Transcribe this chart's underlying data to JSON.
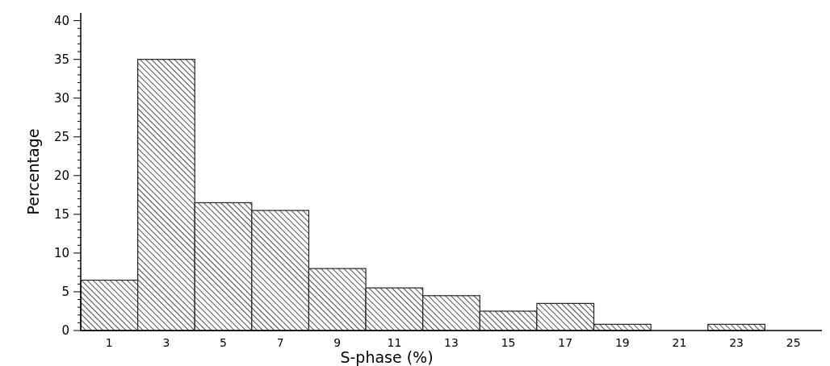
{
  "chart_data": {
    "type": "histogram",
    "xlabel": "S-phase (%)",
    "ylabel": "Percentage",
    "bins": [
      0,
      2,
      4,
      6,
      8,
      10,
      12,
      14,
      16,
      18,
      20,
      22,
      24,
      26
    ],
    "values": [
      6.5,
      35,
      16.5,
      15.5,
      8,
      5.5,
      4.5,
      2.5,
      3.5,
      0.8,
      0,
      0.8,
      0
    ],
    "color": "#222222",
    "xlim": [
      0,
      26
    ],
    "xticks": [
      1,
      3,
      5,
      7,
      9,
      11,
      13,
      15,
      17,
      19,
      21,
      23,
      25
    ],
    "ylim": [
      0,
      41
    ],
    "yticks": [
      0,
      {
        "value": 1,
        "label": null
      },
      {
        "value": 2,
        "label": null
      },
      {
        "value": 3,
        "label": null
      },
      {
        "value": 4,
        "label": null
      },
      5,
      {
        "value": 6,
        "label": null
      },
      {
        "value": 7,
        "label": null
      },
      {
        "value": 8,
        "label": null
      },
      {
        "value": 9,
        "label": null
      },
      10,
      {
        "value": 11,
        "label": null
      },
      {
        "value": 12,
        "label": null
      },
      {
        "value": 13,
        "label": null
      },
      {
        "value": 14,
        "label": null
      },
      15,
      {
        "value": 16,
        "label": null
      },
      {
        "value": 17,
        "label": null
      },
      {
        "value": 18,
        "label": null
      },
      {
        "value": 19,
        "label": null
      },
      20,
      {
        "value": 21,
        "label": null
      },
      {
        "value": 22,
        "label": null
      },
      {
        "value": 23,
        "label": null
      },
      {
        "value": 24,
        "label": null
      },
      25,
      {
        "value": 26,
        "label": null
      },
      {
        "value": 27,
        "label": null
      },
      {
        "value": 28,
        "label": null
      },
      {
        "value": 29,
        "label": null
      },
      30,
      {
        "value": 31,
        "label": null
      },
      {
        "value": 32,
        "label": null
      },
      {
        "value": 33,
        "label": null
      },
      {
        "value": 34,
        "label": null
      },
      35,
      {
        "value": 36,
        "label": null
      },
      {
        "value": 37,
        "label": null
      },
      {
        "value": 38,
        "label": null
      },
      {
        "value": 39,
        "label": null
      },
      40
    ],
    "grid": false
  }
}
